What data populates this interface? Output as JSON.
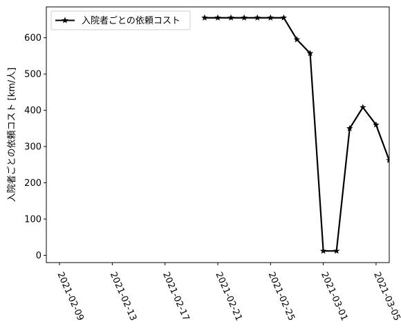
{
  "chart_data": {
    "type": "line",
    "title": "",
    "xlabel": "",
    "ylabel": "入院者ごとの依頼コスト [km/人]",
    "x_type": "date",
    "xlim": [
      "2021-02-08",
      "2021-03-06"
    ],
    "ylim": [
      -20,
      685
    ],
    "x_ticks": [
      "2021-02-09",
      "2021-02-13",
      "2021-02-17",
      "2021-02-21",
      "2021-02-25",
      "2021-03-01",
      "2021-03-05"
    ],
    "y_ticks": [
      0,
      100,
      200,
      300,
      400,
      500,
      600
    ],
    "grid": false,
    "legend": {
      "position": "top-left",
      "entries": [
        "入院者ごとの依頼コスト"
      ]
    },
    "series": [
      {
        "name": "入院者ごとの依頼コスト",
        "color": "#000000",
        "marker": "star",
        "x": [
          "2021-02-20",
          "2021-02-21",
          "2021-02-22",
          "2021-02-23",
          "2021-02-24",
          "2021-02-25",
          "2021-02-26",
          "2021-02-27",
          "2021-02-28",
          "2021-03-01",
          "2021-03-02",
          "2021-03-03",
          "2021-03-04",
          "2021-03-05",
          "2021-03-06"
        ],
        "y": [
          655,
          655,
          655,
          655,
          655,
          655,
          655,
          595,
          557,
          12,
          12,
          350,
          408,
          360,
          262
        ]
      }
    ]
  }
}
